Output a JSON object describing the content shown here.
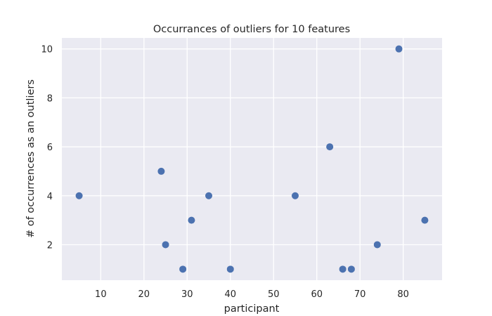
{
  "chart_data": {
    "type": "scatter",
    "title": "Occurrances of outliers for 10 features",
    "xlabel": "participant",
    "ylabel": "# of occurrences as an outliers",
    "xlim": [
      1.0,
      89.0
    ],
    "ylim": [
      0.55,
      10.45
    ],
    "xticks": [
      10,
      20,
      30,
      40,
      50,
      60,
      70,
      80
    ],
    "yticks": [
      2,
      4,
      6,
      8,
      10
    ],
    "grid": true,
    "colors": {
      "background": "#eaeaf2",
      "grid": "#ffffff",
      "marker": "#4c72b0"
    },
    "points": [
      {
        "x": 5,
        "y": 4
      },
      {
        "x": 24,
        "y": 5
      },
      {
        "x": 25,
        "y": 2
      },
      {
        "x": 29,
        "y": 1
      },
      {
        "x": 31,
        "y": 3
      },
      {
        "x": 35,
        "y": 4
      },
      {
        "x": 40,
        "y": 1
      },
      {
        "x": 55,
        "y": 4
      },
      {
        "x": 63,
        "y": 6
      },
      {
        "x": 66,
        "y": 1
      },
      {
        "x": 68,
        "y": 1
      },
      {
        "x": 74,
        "y": 2
      },
      {
        "x": 79,
        "y": 10
      },
      {
        "x": 85,
        "y": 3
      }
    ]
  }
}
